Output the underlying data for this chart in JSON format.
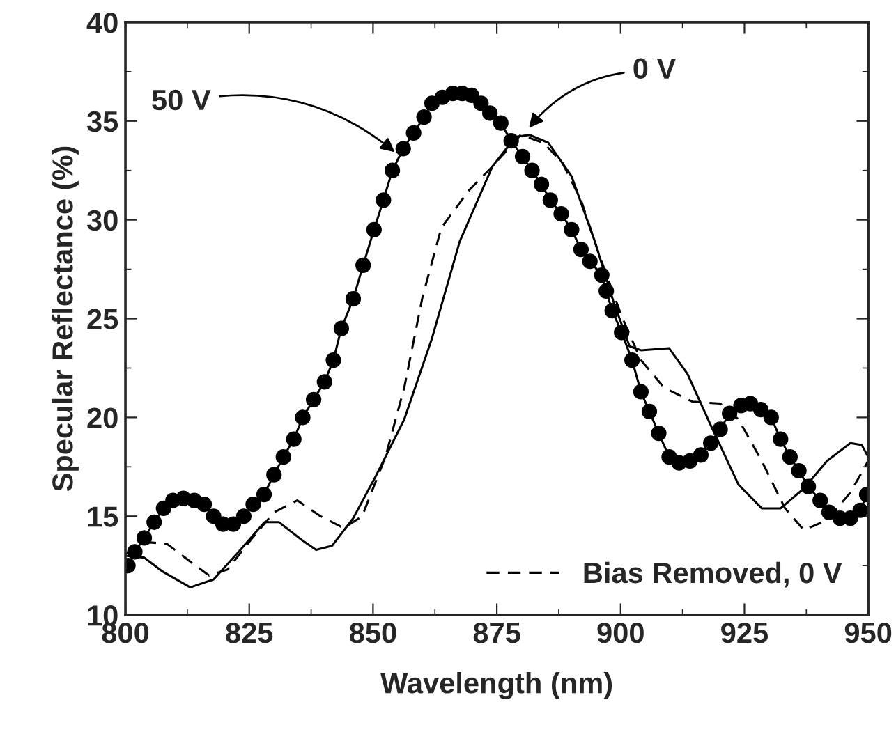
{
  "chart_data": {
    "type": "line",
    "xlabel": "Wavelength (nm)",
    "ylabel": "Specular Reflectance (%)",
    "xlim": [
      800,
      950
    ],
    "ylim": [
      10,
      40
    ],
    "xticks": [
      800,
      825,
      850,
      875,
      900,
      925,
      950
    ],
    "yticks": [
      10,
      15,
      20,
      25,
      30,
      35,
      40
    ],
    "grid": false,
    "legend": "bottom right",
    "series": [
      {
        "color": "#000000",
        "marker": "circle",
        "line_style": "solid",
        "x": [
          800.5,
          801.9,
          803.8,
          805.8,
          807.7,
          809.6,
          811.7,
          813.9,
          815.9,
          817.8,
          819.7,
          821.8,
          823.9,
          825.8,
          828,
          830,
          831.9,
          834,
          835.8,
          838,
          840.2,
          842,
          843.6,
          846,
          848,
          850.2,
          852.1,
          853.9,
          856.1,
          858.2,
          860.3,
          861.9,
          864,
          866.1,
          868,
          869.9,
          871.8,
          873.6,
          875.8,
          877.9,
          880.2,
          882.1,
          884,
          885.8,
          888,
          890.1,
          892,
          893.8,
          896.2,
          897.1,
          898.3,
          900.2,
          902.3,
          904.1,
          905.8,
          907.7,
          909.8,
          911.8,
          914,
          916.2,
          918.2,
          920.1,
          922,
          924.3,
          926.2,
          928.3,
          930.4,
          932.3,
          934.2,
          936,
          937.9,
          940.3,
          942.1,
          944.3,
          946.4,
          948.4,
          949.7
        ],
        "values": [
          12.5,
          13.2,
          13.9,
          14.7,
          15.4,
          15.8,
          15.9,
          15.8,
          15.6,
          15.0,
          14.6,
          14.6,
          15.0,
          15.6,
          16.1,
          17.1,
          18.0,
          18.9,
          20.0,
          20.9,
          21.8,
          22.9,
          24.5,
          26.0,
          27.7,
          29.5,
          31.0,
          32.5,
          33.6,
          34.4,
          35.2,
          35.9,
          36.2,
          36.4,
          36.4,
          36.3,
          35.9,
          35.4,
          34.9,
          34.0,
          33.2,
          32.5,
          31.8,
          31.0,
          30.3,
          29.5,
          28.5,
          27.9,
          27.2,
          26.4,
          25.4,
          24.3,
          22.9,
          21.3,
          20.3,
          19.2,
          18.0,
          17.7,
          17.8,
          18.1,
          18.7,
          19.4,
          20.2,
          20.6,
          20.7,
          20.4,
          20.0,
          18.9,
          18.0,
          17.3,
          16.5,
          15.8,
          15.2,
          14.9,
          14.9,
          15.3,
          16.1
        ]
      },
      {
        "color": "#000000",
        "marker": "none",
        "line_style": "solid",
        "x": [
          800,
          803.8,
          807.5,
          813.1,
          817.8,
          822.5,
          828.1,
          831,
          835.6,
          838.5,
          841.7,
          846,
          850.7,
          856.3,
          861.9,
          867.5,
          874.1,
          878.8,
          881.6,
          885.4,
          890.1,
          894.8,
          898.5,
          901.8,
          904.1,
          909.8,
          913.5,
          918.2,
          923.8,
          928.5,
          932.3,
          937,
          941.7,
          946.4,
          948.7,
          950
        ],
        "values": [
          13.0,
          12.9,
          12.2,
          11.4,
          11.8,
          13.1,
          14.7,
          14.7,
          13.8,
          13.3,
          13.5,
          14.9,
          17.1,
          19.9,
          24.0,
          28.9,
          32.7,
          34.2,
          34.3,
          33.9,
          32.2,
          28.9,
          25.9,
          23.6,
          23.4,
          23.5,
          22.2,
          19.6,
          16.6,
          15.4,
          15.4,
          16.4,
          17.8,
          18.7,
          18.6,
          18.0
        ]
      },
      {
        "name": "Bias Removed, 0 V",
        "color": "#000000",
        "marker": "none",
        "line_style": "dashed",
        "x": [
          800,
          803.8,
          808.4,
          813.1,
          816.9,
          820.6,
          825.3,
          830,
          834.7,
          839.4,
          844.1,
          847.8,
          852.5,
          856.3,
          860,
          863.8,
          869.4,
          874.1,
          879.8,
          884.4,
          888.2,
          892,
          895.7,
          900.4,
          904.1,
          908.8,
          914.5,
          920.1,
          923.8,
          928.5,
          933.2,
          937,
          941.7,
          946.4,
          950
        ],
        "values": [
          13.1,
          13.7,
          13.6,
          12.7,
          12.0,
          12.3,
          13.8,
          15.2,
          15.8,
          15.0,
          14.4,
          15.0,
          18.0,
          21.5,
          26.1,
          29.6,
          31.5,
          32.7,
          34.3,
          33.9,
          32.9,
          31.0,
          28.2,
          25.0,
          22.9,
          21.5,
          20.8,
          20.7,
          19.9,
          17.8,
          15.4,
          14.3,
          14.8,
          16.2,
          17.8
        ]
      }
    ],
    "annotations": [
      {
        "text": "50 V",
        "x": 855,
        "y": 33.3
      },
      {
        "text": "0 V",
        "x": 881,
        "y": 34.5
      }
    ]
  }
}
